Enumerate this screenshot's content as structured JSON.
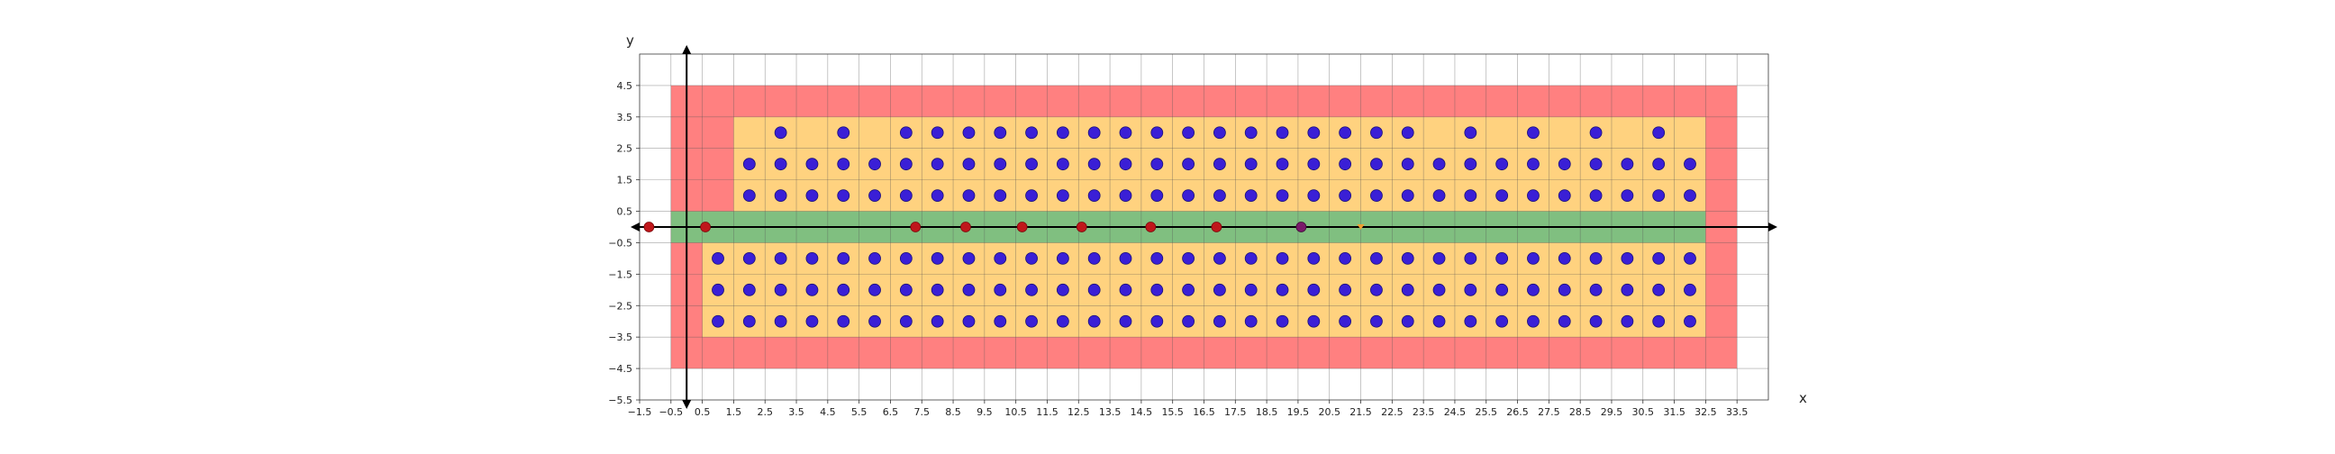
{
  "chart_data": {
    "type": "scatter",
    "title": "",
    "xlabel": "x",
    "ylabel": "y",
    "xlim": [
      -1.5,
      34.5
    ],
    "ylim": [
      -5.5,
      5.5
    ],
    "grid": true,
    "x_ticks": [
      -1.5,
      -0.5,
      0.5,
      1.5,
      2.5,
      3.5,
      4.5,
      5.5,
      6.5,
      7.5,
      8.5,
      9.5,
      10.5,
      11.5,
      12.5,
      13.5,
      14.5,
      15.5,
      16.5,
      17.5,
      18.5,
      19.5,
      20.5,
      21.5,
      22.5,
      23.5,
      24.5,
      25.5,
      26.5,
      27.5,
      28.5,
      29.5,
      30.5,
      31.5,
      32.5,
      33.5
    ],
    "y_ticks": [
      -5.5,
      -4.5,
      -3.5,
      -2.5,
      -1.5,
      -0.5,
      0.5,
      1.5,
      2.5,
      3.5,
      4.5
    ],
    "x_tick_labels": [
      "−1.5",
      "−0.5",
      "0.5",
      "1.5",
      "2.5",
      "3.5",
      "4.5",
      "5.5",
      "6.5",
      "7.5",
      "8.5",
      "9.5",
      "10.5",
      "11.5",
      "12.5",
      "13.5",
      "14.5",
      "15.5",
      "16.5",
      "17.5",
      "18.5",
      "19.5",
      "20.5",
      "21.5",
      "22.5",
      "23.5",
      "24.5",
      "25.5",
      "26.5",
      "27.5",
      "28.5",
      "29.5",
      "30.5",
      "31.5",
      "32.5",
      "33.5"
    ],
    "y_tick_labels": [
      "−5.5",
      "−4.5",
      "−3.5",
      "−2.5",
      "−1.5",
      "−0.5",
      "0.5",
      "1.5",
      "2.5",
      "3.5",
      "4.5"
    ],
    "regions": [
      {
        "color": "#ff8080",
        "x": [
          -0.5,
          33.5
        ],
        "y": [
          -4.5,
          4.5
        ]
      },
      {
        "color": "#ffd27f",
        "x": [
          1.5,
          32.5
        ],
        "y": [
          0.5,
          3.5
        ]
      },
      {
        "color": "#ffd27f",
        "x": [
          0.5,
          32.5
        ],
        "y": [
          -3.5,
          -0.5
        ]
      },
      {
        "color": "#80bf80",
        "x": [
          -0.5,
          32.5
        ],
        "y": [
          -0.5,
          0.5
        ]
      }
    ],
    "blue_points": {
      "color": "#3a1fd6",
      "rows": [
        {
          "y": 3,
          "x": [
            3,
            5,
            7,
            8,
            9,
            10,
            11,
            12,
            13,
            14,
            15,
            16,
            17,
            18,
            19,
            20,
            21,
            22,
            23,
            25,
            27,
            29,
            31
          ]
        },
        {
          "y": 2,
          "x": [
            2,
            3,
            4,
            5,
            6,
            7,
            8,
            9,
            10,
            11,
            12,
            13,
            14,
            15,
            16,
            17,
            18,
            19,
            20,
            21,
            22,
            23,
            24,
            25,
            26,
            27,
            28,
            29,
            30,
            31,
            32
          ]
        },
        {
          "y": 1,
          "x": [
            2,
            3,
            4,
            5,
            6,
            7,
            8,
            9,
            10,
            11,
            12,
            13,
            14,
            15,
            16,
            17,
            18,
            19,
            20,
            21,
            22,
            23,
            24,
            25,
            26,
            27,
            28,
            29,
            30,
            31,
            32
          ]
        },
        {
          "y": -1,
          "x": [
            1,
            2,
            3,
            4,
            5,
            6,
            7,
            8,
            9,
            10,
            11,
            12,
            13,
            14,
            15,
            16,
            17,
            18,
            19,
            20,
            21,
            22,
            23,
            24,
            25,
            26,
            27,
            28,
            29,
            30,
            31,
            32
          ]
        },
        {
          "y": -2,
          "x": [
            1,
            2,
            3,
            4,
            5,
            6,
            7,
            8,
            9,
            10,
            11,
            12,
            13,
            14,
            15,
            16,
            17,
            18,
            19,
            20,
            21,
            22,
            23,
            24,
            25,
            26,
            27,
            28,
            29,
            30,
            31,
            32
          ]
        },
        {
          "y": -3,
          "x": [
            1,
            2,
            3,
            4,
            5,
            6,
            7,
            8,
            9,
            10,
            11,
            12,
            13,
            14,
            15,
            16,
            17,
            18,
            19,
            20,
            21,
            22,
            23,
            24,
            25,
            26,
            27,
            28,
            29,
            30,
            31,
            32
          ]
        }
      ]
    },
    "red_points": {
      "color": "#c0161b",
      "points": [
        [
          -1.2,
          0
        ],
        [
          0.6,
          0
        ],
        [
          7.3,
          0
        ],
        [
          8.9,
          0
        ],
        [
          10.7,
          0
        ],
        [
          12.6,
          0
        ],
        [
          14.8,
          0
        ],
        [
          16.9,
          0
        ]
      ]
    },
    "purple_point": {
      "color": "#7a1a6a",
      "x": 19.6,
      "y": 0
    },
    "orange_marker": {
      "color": "#f0a030",
      "x": 21.5,
      "y": 0
    }
  }
}
